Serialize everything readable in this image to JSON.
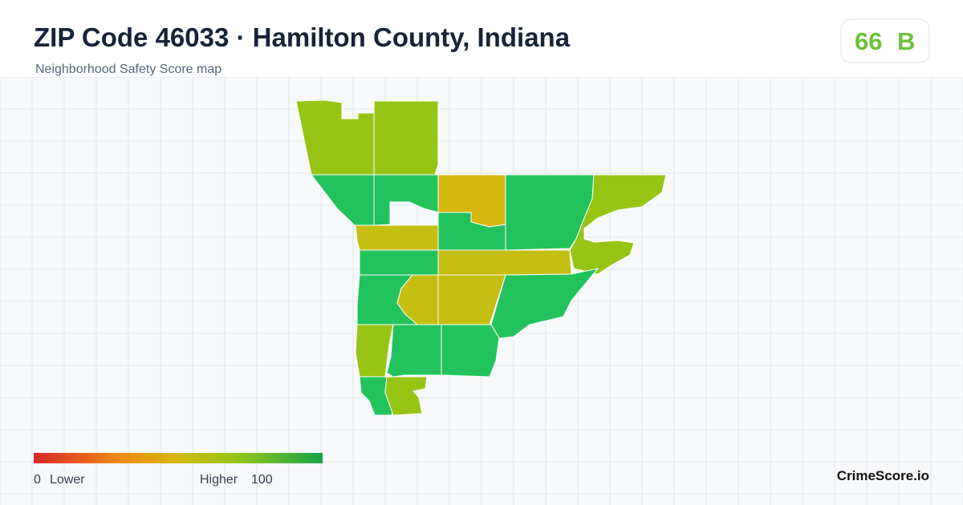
{
  "header": {
    "title": "ZIP Code 46033 · Hamilton County, Indiana",
    "subtitle": "Neighborhood Safety Score map"
  },
  "score": {
    "value": 66,
    "grade": "B"
  },
  "legend": {
    "min": 0,
    "min_label": "Lower",
    "max_label": "Higher",
    "max": 100
  },
  "brand": "CrimeScore.io"
}
